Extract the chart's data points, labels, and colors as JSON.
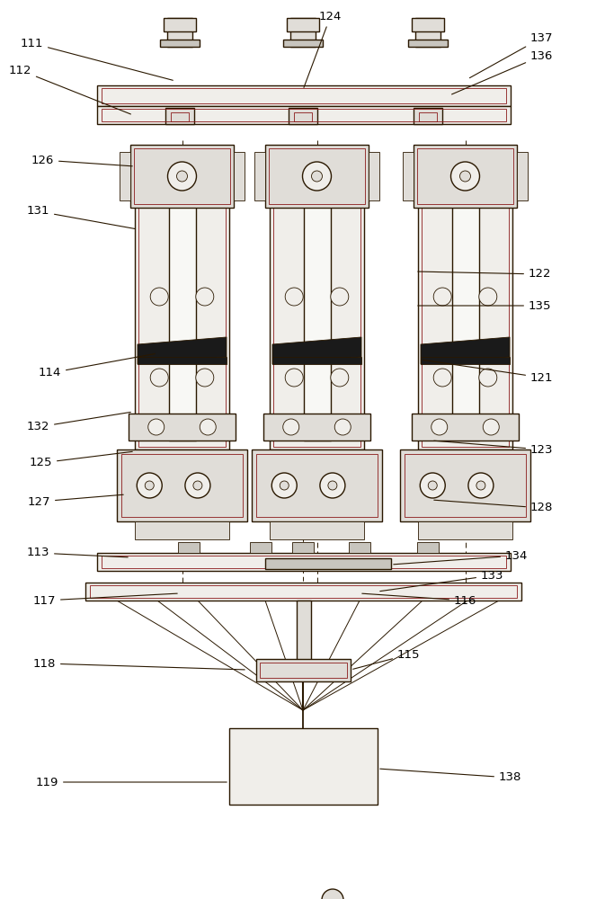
{
  "bg": "#ffffff",
  "lc": "#2a1800",
  "rc": "#8b1a1a",
  "fc_light": "#f0eeea",
  "fc_mid": "#e0ddd8",
  "fc_dark": "#c8c5be",
  "fc_black": "#1a1a1a",
  "figw": 6.73,
  "figh": 10.0,
  "dpi": 100,
  "lw": 1.0,
  "lw_thin": 0.6,
  "lw_red": 0.6
}
